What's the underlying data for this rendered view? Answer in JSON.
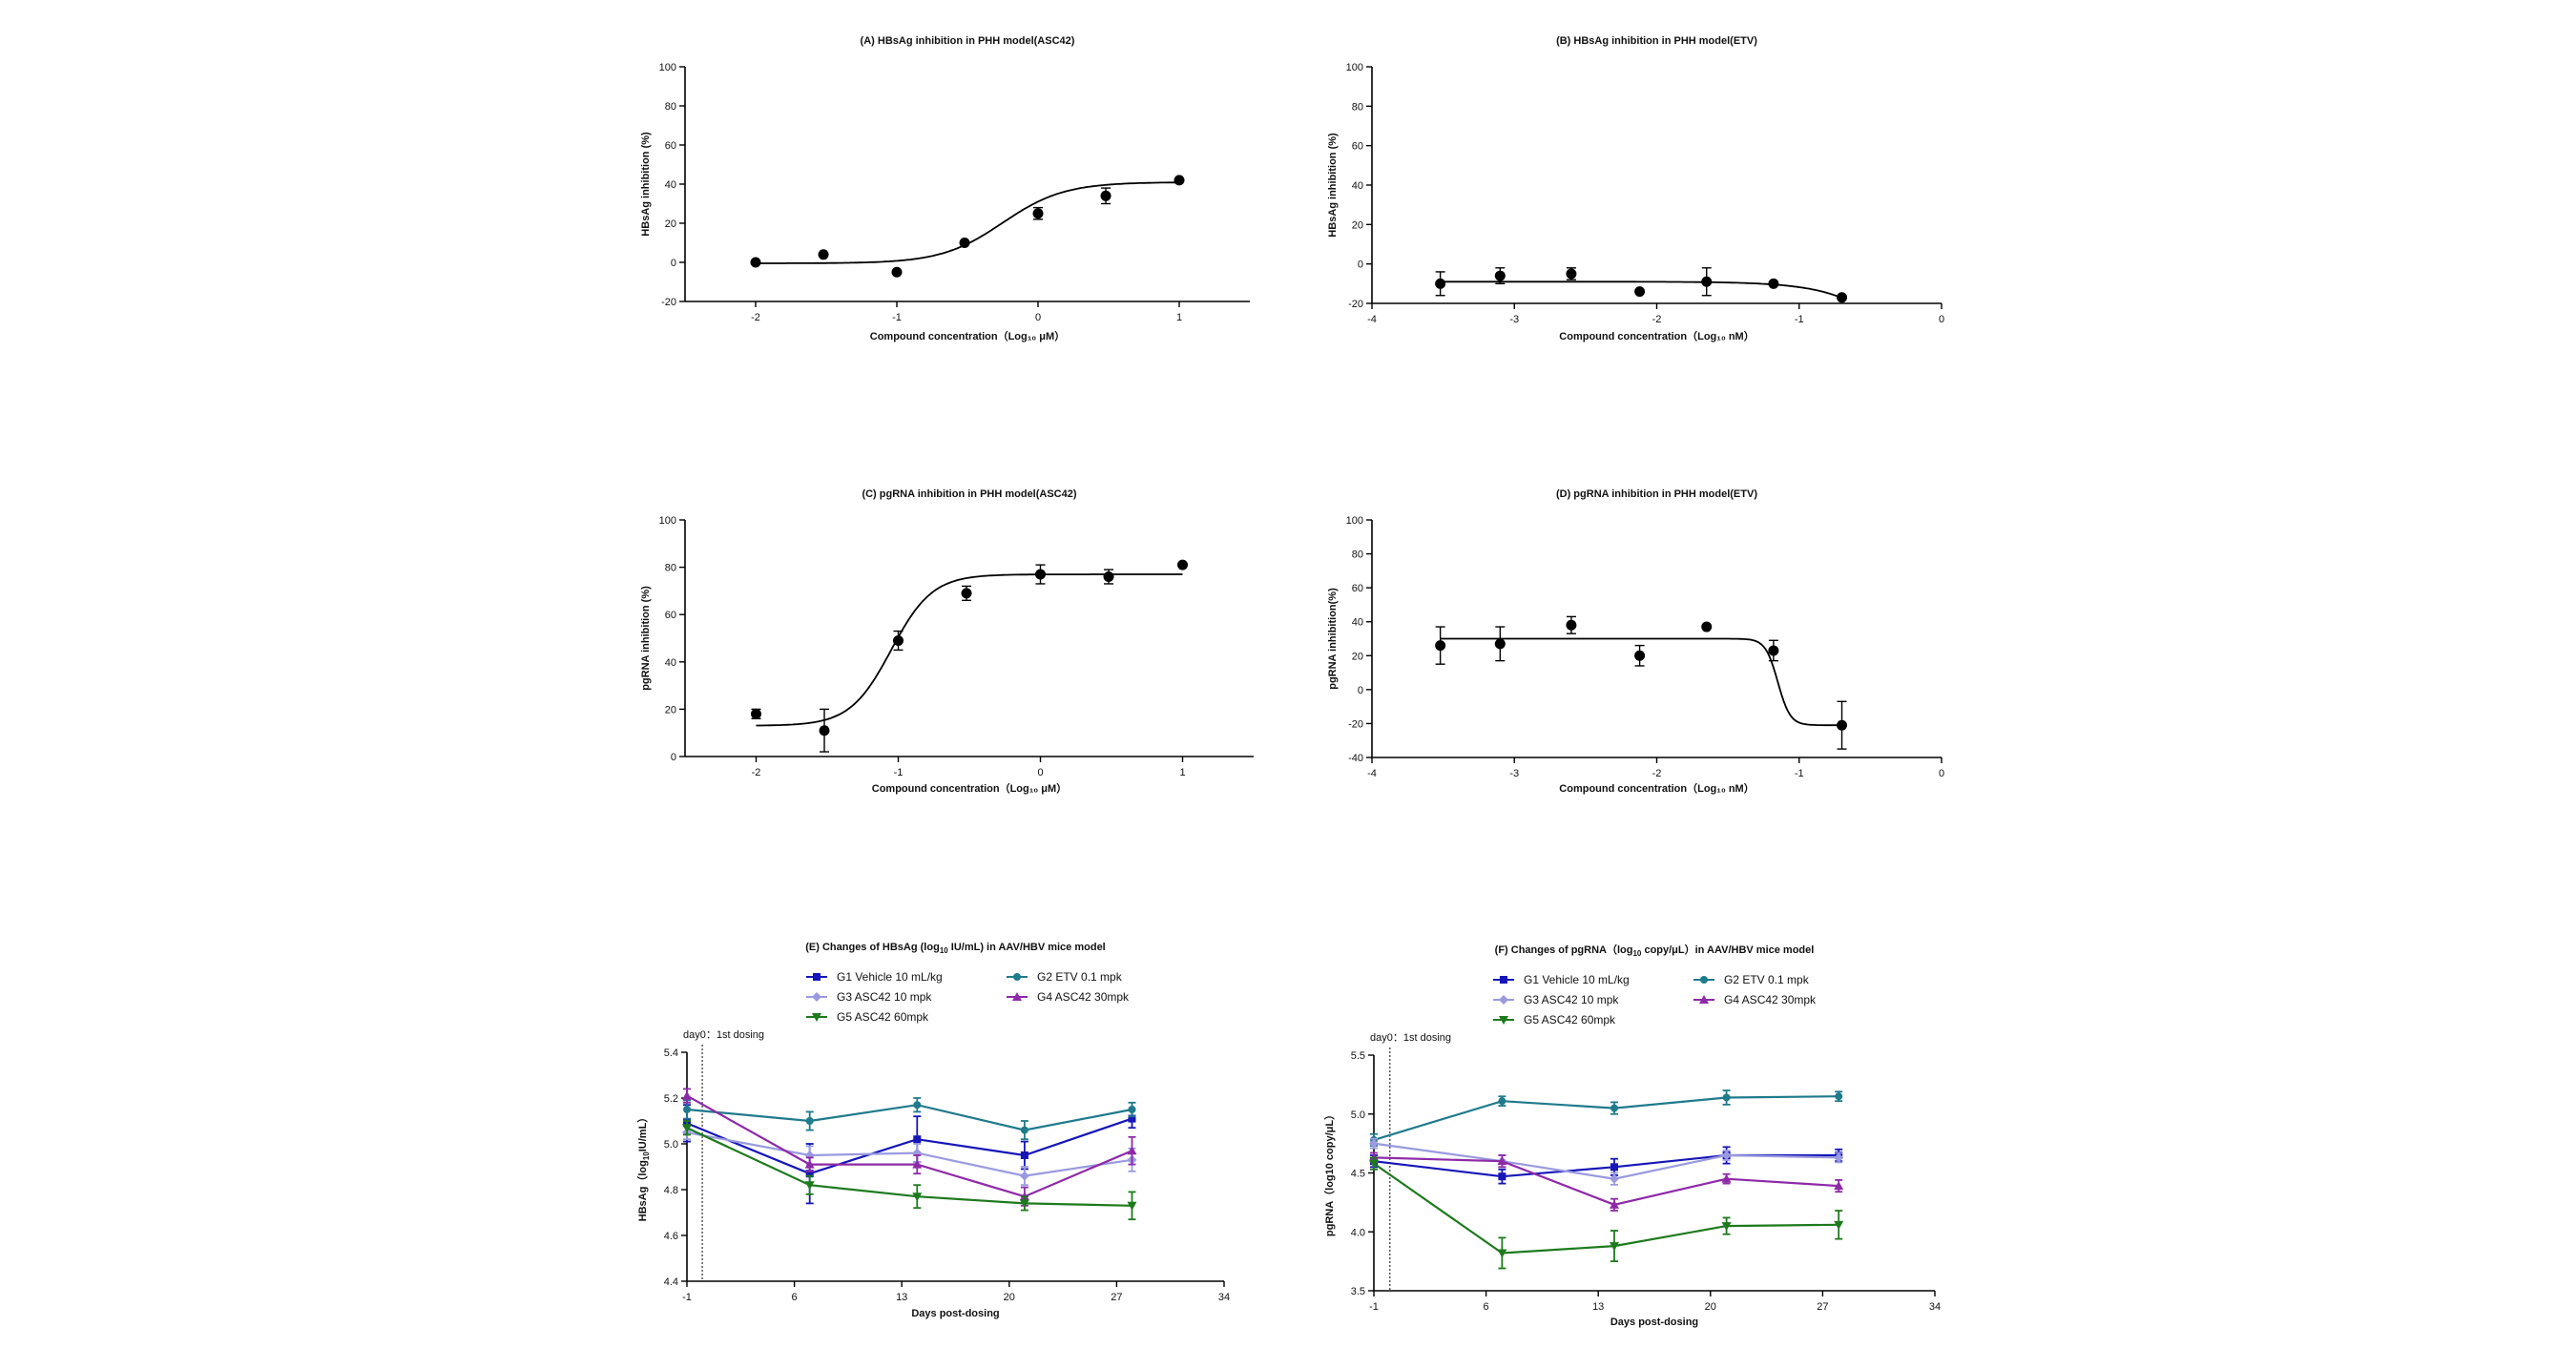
{
  "chart_data": [
    {
      "id": "A",
      "type": "scatter",
      "title": "(A)  HBsAg inhibition in PHH model(ASC42)",
      "ylabel": "HBsAg inhibition (%)",
      "xlabel": "Compound concentration（Log₁₀ μM）",
      "xlim": [
        -2.5,
        1.5
      ],
      "ylim": [
        -20,
        100
      ],
      "xticks": [
        -2,
        -1,
        0,
        1
      ],
      "yticks": [
        -20,
        0,
        20,
        40,
        60,
        80,
        100
      ],
      "curve": {
        "bottom": -0.5,
        "top": 41,
        "ec50_log": -0.25,
        "hill": 2
      },
      "points": [
        {
          "x": -2,
          "y": 0
        },
        {
          "x": -1.52,
          "y": 4
        },
        {
          "x": -1,
          "y": -5
        },
        {
          "x": -0.52,
          "y": 10
        },
        {
          "x": 0,
          "y": 25,
          "err": 3
        },
        {
          "x": 0.48,
          "y": 34,
          "err": 4
        },
        {
          "x": 1,
          "y": 42
        }
      ]
    },
    {
      "id": "B",
      "type": "scatter",
      "title": "(B)  HBsAg inhibition in PHH model(ETV)",
      "ylabel": "HBsAg inhibition (%)",
      "xlabel": "Compound concentration（Log₁₀ nM）",
      "xlim": [
        -4,
        0
      ],
      "ylim": [
        -20,
        100
      ],
      "xticks": [
        -4,
        -3,
        -2,
        -1,
        0
      ],
      "yticks": [
        -20,
        0,
        20,
        40,
        60,
        80,
        100
      ],
      "curve": {
        "bottom": -9,
        "top": -300,
        "ec50_log": 0.26,
        "hill": 1.6
      },
      "points": [
        {
          "x": -3.52,
          "y": -10,
          "err": 6
        },
        {
          "x": -3.1,
          "y": -6,
          "err": 4
        },
        {
          "x": -2.6,
          "y": -5,
          "err": 3
        },
        {
          "x": -2.12,
          "y": -14
        },
        {
          "x": -1.65,
          "y": -9,
          "err": 7
        },
        {
          "x": -1.18,
          "y": -10
        },
        {
          "x": -0.7,
          "y": -17
        }
      ]
    },
    {
      "id": "C",
      "type": "scatter",
      "title": "(C)  pgRNA inhibition in PHH model(ASC42)",
      "ylabel": "pgRNA inhibition (%)",
      "xlabel": "Compound concentration（Log₁₀ μM）",
      "xlim": [
        -2.5,
        1.5
      ],
      "ylim": [
        0,
        100
      ],
      "xticks": [
        -2,
        -1,
        0,
        1
      ],
      "yticks": [
        0,
        20,
        40,
        60,
        80,
        100
      ],
      "curve": {
        "bottom": 13,
        "top": 77,
        "ec50_log": -1.05,
        "hill": 3
      },
      "points": [
        {
          "x": -2,
          "y": 18,
          "err": 2
        },
        {
          "x": -1.52,
          "y": 11,
          "err": 9
        },
        {
          "x": -1,
          "y": 49,
          "err": 4
        },
        {
          "x": -0.52,
          "y": 69,
          "err": 3
        },
        {
          "x": 0,
          "y": 77,
          "err": 4
        },
        {
          "x": 0.48,
          "y": 76,
          "err": 3
        },
        {
          "x": 1,
          "y": 81
        }
      ]
    },
    {
      "id": "D",
      "type": "scatter",
      "title": "(D)  pgRNA inhibition in PHH model(ETV)",
      "ylabel": "pgRNA inhibition(%)",
      "xlabel": "Compound concentration（Log₁₀ nM）",
      "xlim": [
        -4,
        0
      ],
      "ylim": [
        -40,
        100
      ],
      "xticks": [
        -4,
        -3,
        -2,
        -1,
        0
      ],
      "yticks": [
        -40,
        -20,
        0,
        20,
        40,
        60,
        80,
        100
      ],
      "curve": {
        "bottom": 30,
        "top": -21,
        "ec50_log": -1.15,
        "hill": 10
      },
      "points": [
        {
          "x": -3.52,
          "y": 26,
          "err": 11
        },
        {
          "x": -3.1,
          "y": 27,
          "err": 10
        },
        {
          "x": -2.6,
          "y": 38,
          "err": 5
        },
        {
          "x": -2.12,
          "y": 20,
          "err": 6
        },
        {
          "x": -1.65,
          "y": 37
        },
        {
          "x": -1.18,
          "y": 23,
          "err": 6
        },
        {
          "x": -0.7,
          "y": -21,
          "err": 14
        }
      ]
    },
    {
      "id": "E",
      "type": "line",
      "title_pre": "(E)  Changes of HBsAg (log",
      "title_sub": "10",
      "title_post": " IU/mL) in AAV/HBV mice model",
      "ylabel_pre": "HBsAg（log",
      "ylabel_sub": "10",
      "ylabel_post": "IU/mL）",
      "xlabel": "Days post-dosing",
      "annotation": "day0：1st dosing",
      "xlim": [
        -1,
        34
      ],
      "ylim": [
        4.4,
        5.4
      ],
      "xticks": [
        -1,
        6,
        13,
        20,
        27,
        34
      ],
      "yticks": [
        4.4,
        4.6,
        4.8,
        5.0,
        5.2,
        5.4
      ],
      "x": [
        -1,
        7,
        14,
        21,
        28
      ],
      "legend_cols": 2,
      "series": [
        {
          "name": "G1 Vehicle 10 mL/kg",
          "color": "#1515b8",
          "marker": "square",
          "values": [
            5.09,
            4.87,
            5.02,
            4.95,
            5.11
          ],
          "errors": [
            0.08,
            0.13,
            0.1,
            0.06,
            0.04
          ]
        },
        {
          "name": "G2 ETV 0.1 mpk",
          "color": "#1f7a8c",
          "marker": "circle",
          "values": [
            5.15,
            5.1,
            5.17,
            5.06,
            5.15
          ],
          "errors": [
            0.04,
            0.04,
            0.03,
            0.04,
            0.03
          ]
        },
        {
          "name": "G3 ASC42 10 mpk",
          "color": "#9a9ae0",
          "marker": "diamond",
          "values": [
            5.05,
            4.95,
            4.96,
            4.86,
            4.93
          ],
          "errors": [
            0.03,
            0.04,
            0.04,
            0.04,
            0.05
          ]
        },
        {
          "name": "G4 ASC42 30mpk",
          "color": "#8e2aa8",
          "marker": "triangle",
          "values": [
            5.21,
            4.91,
            4.91,
            4.77,
            4.97
          ],
          "errors": [
            0.03,
            0.03,
            0.04,
            0.04,
            0.06
          ]
        },
        {
          "name": "G5 ASC42 60mpk",
          "color": "#1d7a1d",
          "marker": "triangle-down",
          "values": [
            5.07,
            4.82,
            4.77,
            4.74,
            4.73
          ],
          "errors": [
            0.03,
            0.04,
            0.05,
            0.03,
            0.06
          ]
        }
      ]
    },
    {
      "id": "F",
      "type": "line",
      "title_pre": "(F)  Changes of pgRNA（log",
      "title_sub": "10",
      "title_post": " copy/μL）in AAV/HBV mice model",
      "ylabel_pre": "pgRNA（log10 copy/μL）",
      "ylabel_sub": "",
      "ylabel_post": "",
      "xlabel": "Days post-dosing",
      "annotation": "day0：1st dosing",
      "xlim": [
        -1,
        34
      ],
      "ylim": [
        3.5,
        5.5
      ],
      "xticks": [
        -1,
        6,
        13,
        20,
        27,
        34
      ],
      "yticks": [
        3.5,
        4.0,
        4.5,
        5.0,
        5.5
      ],
      "x": [
        -1,
        7,
        14,
        21,
        28
      ],
      "legend_cols": 2,
      "series": [
        {
          "name": "G1 Vehicle 10 mL/kg",
          "color": "#1515b8",
          "marker": "square",
          "values": [
            4.6,
            4.47,
            4.55,
            4.65,
            4.65
          ],
          "errors": [
            0.05,
            0.06,
            0.07,
            0.07,
            0.05
          ]
        },
        {
          "name": "G2 ETV 0.1 mpk",
          "color": "#1f7a8c",
          "marker": "circle",
          "values": [
            4.78,
            5.11,
            5.05,
            5.14,
            5.15
          ],
          "errors": [
            0.05,
            0.04,
            0.05,
            0.06,
            0.04
          ]
        },
        {
          "name": "G3 ASC42 10 mpk",
          "color": "#9a9ae0",
          "marker": "diamond",
          "values": [
            4.75,
            4.6,
            4.45,
            4.65,
            4.63
          ],
          "errors": [
            0.04,
            0.05,
            0.05,
            0.04,
            0.04
          ]
        },
        {
          "name": "G4 ASC42 30mpk",
          "color": "#8e2aa8",
          "marker": "triangle",
          "values": [
            4.63,
            4.6,
            4.23,
            4.45,
            4.39
          ],
          "errors": [
            0.04,
            0.05,
            0.05,
            0.04,
            0.05
          ]
        },
        {
          "name": "G5 ASC42 60mpk",
          "color": "#1d7a1d",
          "marker": "triangle-down",
          "values": [
            4.58,
            3.82,
            3.88,
            4.05,
            4.06
          ],
          "errors": [
            0.05,
            0.13,
            0.13,
            0.07,
            0.12
          ]
        }
      ]
    }
  ]
}
